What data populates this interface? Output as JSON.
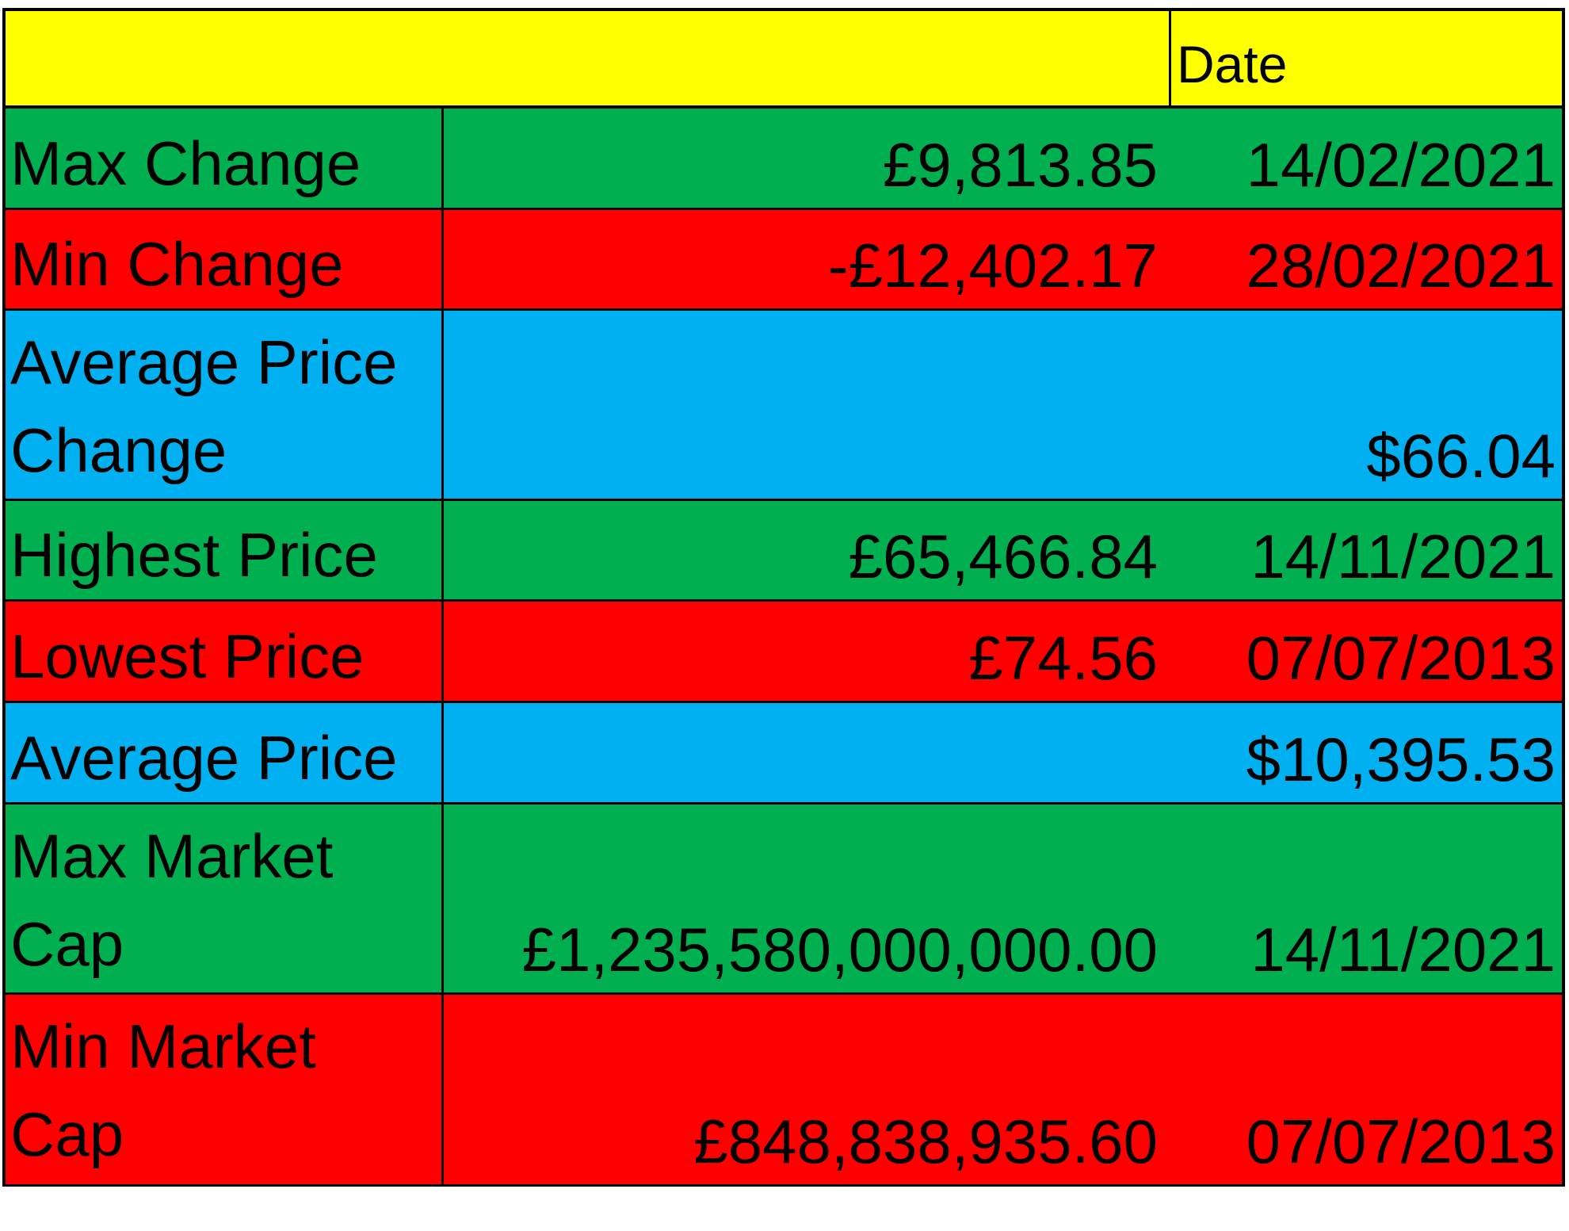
{
  "header": {
    "date_label": "Date"
  },
  "rows": [
    {
      "label": "Max Change",
      "value": "£9,813.85",
      "date": "14/02/2021"
    },
    {
      "label": "Min Change",
      "value": "-£12,402.17",
      "date": "28/02/2021"
    },
    {
      "label": "Average Price Change",
      "value": "$66.04",
      "date": ""
    },
    {
      "label": "Highest Price",
      "value": "£65,466.84",
      "date": "14/11/2021"
    },
    {
      "label": "Lowest Price",
      "value": "£74.56",
      "date": "07/07/2013"
    },
    {
      "label": "Average Price",
      "value": "$10,395.53",
      "date": ""
    },
    {
      "label": "Max Market Cap",
      "value": "£1,235,580,000,000.00",
      "date": "14/11/2021"
    },
    {
      "label": "Min Market Cap",
      "value": "£848,838,935.60",
      "date": "07/07/2013"
    }
  ],
  "colors": {
    "header": "#ffff00",
    "green": "#00b050",
    "red": "#ff0000",
    "blue": "#00b0f0"
  }
}
